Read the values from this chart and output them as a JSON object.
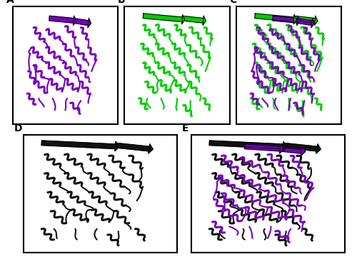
{
  "figure_width": 5.0,
  "figure_height": 3.63,
  "dpi": 100,
  "background_color": "#ffffff",
  "panel_labels": [
    "A",
    "B",
    "C",
    "D",
    "E"
  ],
  "label_fontsize": 10,
  "label_fontweight": "bold",
  "colors": {
    "purple": "#7700bb",
    "green": "#00cc00",
    "dark": "#111111",
    "black": "#000000",
    "white": "#ffffff"
  },
  "lw_helix": 2.2,
  "lw_loop": 1.5,
  "lw_sheet": 2.5,
  "panel_border_lw": 1.5
}
